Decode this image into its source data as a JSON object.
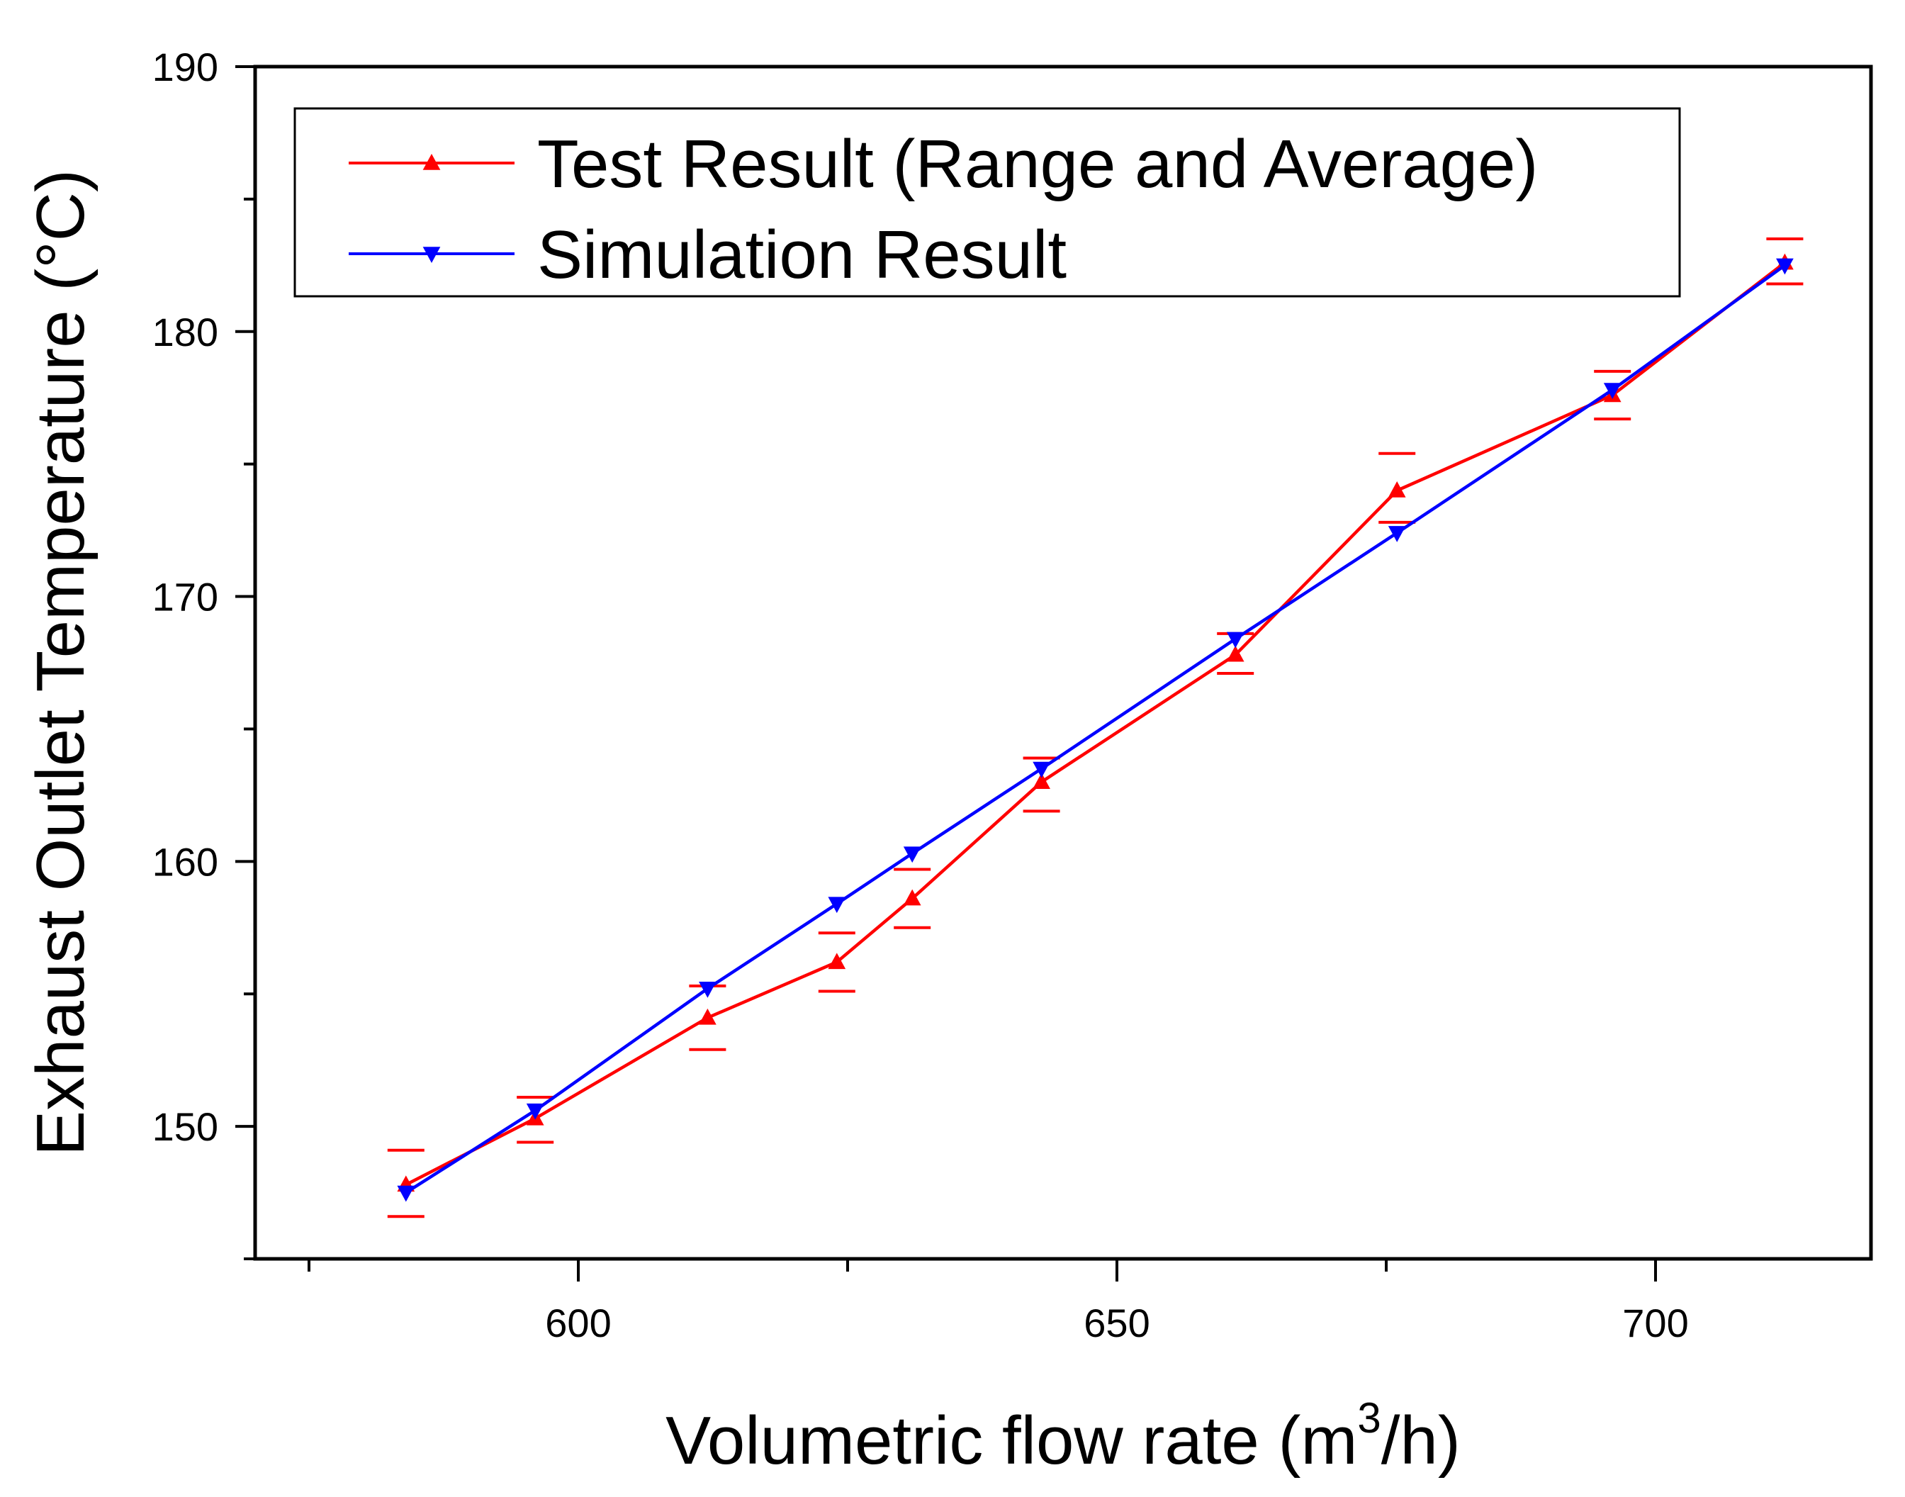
{
  "chart_data": {
    "type": "line",
    "title": "",
    "xlabel": "Volumetric flow rate (m³/h)",
    "xlabel_parts": {
      "before": "Volumetric flow rate (m",
      "sup": "3",
      "after": "/h)"
    },
    "ylabel": "Exhaust Outlet Temperature (°C)",
    "xlim": [
      570,
      720
    ],
    "ylim": [
      145,
      190
    ],
    "xticks": [
      600,
      650,
      700
    ],
    "xtick_labels": [
      "600",
      "650",
      "700"
    ],
    "yticks": [
      150,
      160,
      170,
      180,
      190
    ],
    "ytick_labels": [
      "150",
      "160",
      "170",
      "180",
      "190"
    ],
    "grid": false,
    "legend_position": "top-left",
    "series": [
      {
        "name": "Test Result (Range and Average)",
        "color": "#ff0000",
        "marker": "triangle-up",
        "x": [
          584,
          596,
          612,
          624,
          631,
          643,
          661,
          676,
          696,
          712
        ],
        "y": [
          147.8,
          150.3,
          154.1,
          156.2,
          158.6,
          163.0,
          167.8,
          174.0,
          177.6,
          182.6
        ],
        "y_min": [
          146.6,
          149.4,
          152.9,
          155.1,
          157.5,
          161.9,
          167.1,
          172.8,
          176.7,
          181.8
        ],
        "y_max": [
          149.1,
          151.1,
          155.3,
          157.3,
          159.7,
          163.9,
          168.6,
          175.4,
          178.5,
          183.5
        ]
      },
      {
        "name": "Simulation Result",
        "color": "#0000ff",
        "marker": "triangle-down",
        "x": [
          584,
          596,
          612,
          624,
          631,
          643,
          661,
          676,
          696,
          712
        ],
        "y": [
          147.5,
          150.6,
          155.2,
          158.4,
          160.3,
          163.5,
          168.4,
          172.4,
          177.8,
          182.5
        ]
      }
    ]
  }
}
